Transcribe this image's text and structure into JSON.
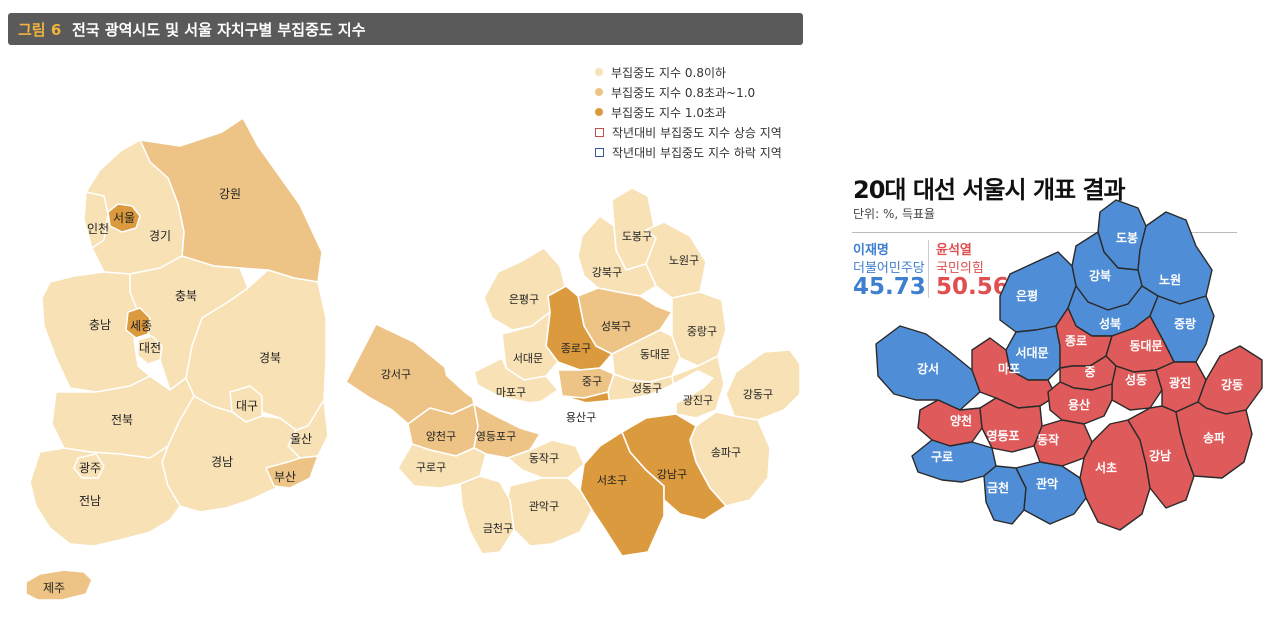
{
  "figure": {
    "number": "그림 6",
    "title": "전국 광역시도 및 서울 자치구별 부집중도 지수"
  },
  "colors": {
    "low": "#f7e1b5",
    "mid": "#eec486",
    "high": "#dc9a3e",
    "border": "#ffffff",
    "blue": "#4f8ed6",
    "red": "#df5a5a",
    "rise_marker": "#c0504d",
    "fall_marker": "#3358a8"
  },
  "legend": [
    {
      "label": "부집중도 지수 0.8이하",
      "type": "dot",
      "color_key": "low"
    },
    {
      "label": "부집중도 지수 0.8초과~1.0",
      "type": "dot",
      "color_key": "mid"
    },
    {
      "label": "부집중도 지수 1.0초과",
      "type": "dot",
      "color_key": "high"
    },
    {
      "label": "작년대비 부집중도 지수 상승 지역",
      "type": "square",
      "color_key": "rise_marker"
    },
    {
      "label": "작년대비 부집중도 지수 하락 지역",
      "type": "square",
      "color_key": "fall_marker"
    }
  ],
  "korea_map": {
    "regions": [
      {
        "name": "강원",
        "level": "mid"
      },
      {
        "name": "서울",
        "level": "high"
      },
      {
        "name": "인천",
        "level": "low"
      },
      {
        "name": "경기",
        "level": "low"
      },
      {
        "name": "충북",
        "level": "low"
      },
      {
        "name": "충남",
        "level": "low"
      },
      {
        "name": "세종",
        "level": "high"
      },
      {
        "name": "대전",
        "level": "low"
      },
      {
        "name": "경북",
        "level": "low"
      },
      {
        "name": "대구",
        "level": "low"
      },
      {
        "name": "전북",
        "level": "low"
      },
      {
        "name": "울산",
        "level": "low"
      },
      {
        "name": "광주",
        "level": "low"
      },
      {
        "name": "경남",
        "level": "low"
      },
      {
        "name": "부산",
        "level": "mid"
      },
      {
        "name": "전남",
        "level": "low"
      },
      {
        "name": "제주",
        "level": "mid"
      }
    ]
  },
  "seoul_index_map": {
    "districts": [
      {
        "name": "도봉구",
        "level": "low"
      },
      {
        "name": "노원구",
        "level": "low"
      },
      {
        "name": "강북구",
        "level": "low"
      },
      {
        "name": "은평구",
        "level": "low"
      },
      {
        "name": "성북구",
        "level": "mid"
      },
      {
        "name": "중랑구",
        "level": "low"
      },
      {
        "name": "종로구",
        "level": "high"
      },
      {
        "name": "서대문",
        "level": "low"
      },
      {
        "name": "동대문",
        "level": "low"
      },
      {
        "name": "강서구",
        "level": "mid"
      },
      {
        "name": "마포구",
        "level": "low"
      },
      {
        "name": "중구",
        "level": "mid"
      },
      {
        "name": "성동구",
        "level": "low"
      },
      {
        "name": "광진구",
        "level": "low"
      },
      {
        "name": "강동구",
        "level": "low"
      },
      {
        "name": "용산구",
        "level": "high"
      },
      {
        "name": "양천구",
        "level": "mid"
      },
      {
        "name": "영등포구",
        "level": "mid"
      },
      {
        "name": "송파구",
        "level": "low"
      },
      {
        "name": "동작구",
        "level": "low"
      },
      {
        "name": "구로구",
        "level": "low"
      },
      {
        "name": "서초구",
        "level": "high"
      },
      {
        "name": "강남구",
        "level": "high"
      },
      {
        "name": "관악구",
        "level": "low"
      },
      {
        "name": "금천구",
        "level": "low"
      }
    ]
  },
  "election": {
    "title": "20대 대선 서울시 개표 결과",
    "unit": "단위: %, 득표율",
    "candidates": [
      {
        "name": "이재명",
        "party": "더불어민주당",
        "pct": "45.73",
        "color_key": "blue"
      },
      {
        "name": "윤석열",
        "party": "국민의힘",
        "pct": "50.56",
        "color_key": "red"
      }
    ],
    "districts": [
      {
        "name": "도봉",
        "winner": "blue"
      },
      {
        "name": "강북",
        "winner": "blue"
      },
      {
        "name": "노원",
        "winner": "blue"
      },
      {
        "name": "은평",
        "winner": "blue"
      },
      {
        "name": "성북",
        "winner": "blue"
      },
      {
        "name": "중랑",
        "winner": "blue"
      },
      {
        "name": "서대문",
        "winner": "blue"
      },
      {
        "name": "종로",
        "winner": "red"
      },
      {
        "name": "동대문",
        "winner": "red"
      },
      {
        "name": "강서",
        "winner": "blue"
      },
      {
        "name": "마포",
        "winner": "red"
      },
      {
        "name": "중",
        "winner": "red"
      },
      {
        "name": "성동",
        "winner": "red"
      },
      {
        "name": "광진",
        "winner": "red"
      },
      {
        "name": "강동",
        "winner": "red"
      },
      {
        "name": "용산",
        "winner": "red"
      },
      {
        "name": "양천",
        "winner": "red"
      },
      {
        "name": "영등포",
        "winner": "red"
      },
      {
        "name": "동작",
        "winner": "red"
      },
      {
        "name": "구로",
        "winner": "blue"
      },
      {
        "name": "금천",
        "winner": "blue"
      },
      {
        "name": "관악",
        "winner": "blue"
      },
      {
        "name": "서초",
        "winner": "red"
      },
      {
        "name": "강남",
        "winner": "red"
      },
      {
        "name": "송파",
        "winner": "red"
      }
    ]
  }
}
